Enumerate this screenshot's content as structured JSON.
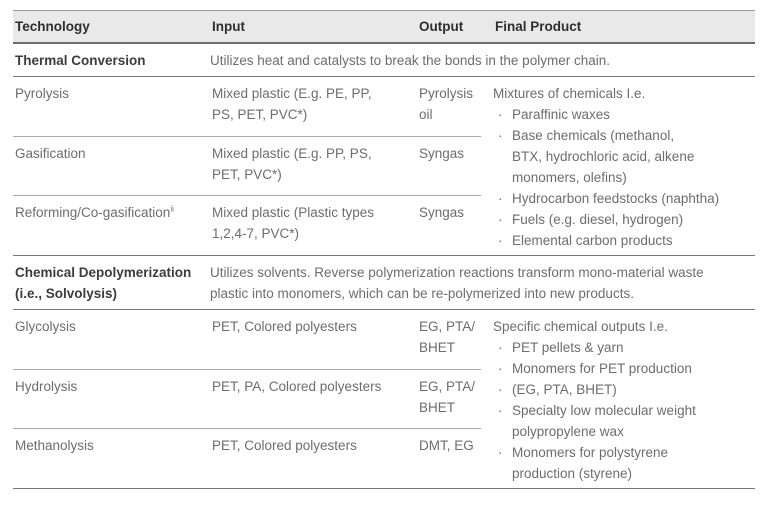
{
  "glyphs": {
    "bullet": "·"
  },
  "colors": {
    "header_bg": "#e9e9e9",
    "header_text": "#2f2f2f",
    "body_text": "#6d6d6d",
    "bold_text": "#3c3c3c",
    "heavy_rule": "#6e6e6e",
    "section_rule": "#777777",
    "subrow_rule": "#ababab"
  },
  "table": {
    "columns": [
      "Technology",
      "Input",
      "Output",
      "Final Product"
    ],
    "sections": [
      {
        "name": "Thermal Conversion",
        "description": "Utilizes heat and catalysts to break the bonds in the polymer chain.",
        "rows": [
          {
            "technology": "Pyrolysis",
            "sup": "",
            "input": "Mixed plastic (E.g. PE, PP,\nPS, PET, PVC*)",
            "output": "Pyrolysis oil"
          },
          {
            "technology": "Gasification",
            "sup": "",
            "input": "Mixed plastic (E.g. PP, PS,\nPET, PVC*)",
            "output": "Syngas"
          },
          {
            "technology": "Reforming/Co-gasification",
            "sup": "ii",
            "input": "Mixed plastic (Plastic types\n1,2,4-7, PVC*)",
            "output": "Syngas"
          }
        ],
        "final_product": {
          "intro": "Mixtures of chemicals I.e.",
          "bullets": [
            "Paraffinic waxes",
            "Base chemicals (methanol,\nBTX, hydrochloric acid, alkene\nmonomers, olefins)",
            "Hydrocarbon feedstocks (naphtha)",
            "Fuels (e.g. diesel, hydrogen)",
            "Elemental carbon products"
          ]
        }
      },
      {
        "name": "Chemical Depolymerization\n(i.e., Solvolysis)",
        "description": "Utilizes solvents. Reverse polymerization reactions transform mono-material waste\nplastic into monomers, which can be re-polymerized into new products.",
        "rows": [
          {
            "technology": "Glycolysis",
            "sup": "",
            "input": "PET, Colored polyesters",
            "output": "EG, PTA/\nBHET"
          },
          {
            "technology": "Hydrolysis",
            "sup": "",
            "input": "PET, PA, Colored polyesters",
            "output": "EG, PTA/\nBHET"
          },
          {
            "technology": "Methanolysis",
            "sup": "",
            "input": "PET, Colored polyesters",
            "output": "DMT, EG"
          }
        ],
        "final_product": {
          "intro": "Specific chemical outputs I.e.",
          "bullets": [
            "PET pellets & yarn",
            "Monomers for PET production",
            "(EG, PTA, BHET)",
            "Specialty low molecular weight\npolypropylene wax",
            "Monomers for polystyrene\nproduction (styrene)"
          ]
        }
      }
    ]
  }
}
